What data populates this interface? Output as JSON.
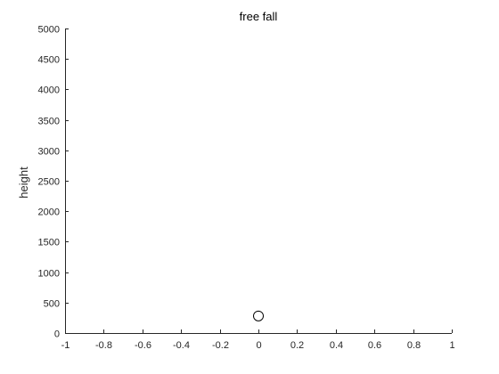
{
  "chart_data": {
    "type": "scatter",
    "title": "free fall",
    "xlabel": "",
    "ylabel": "height",
    "xlim": [
      -1,
      1
    ],
    "ylim": [
      0,
      5000
    ],
    "xticks": [
      -1,
      -0.8,
      -0.6,
      -0.4,
      -0.2,
      0,
      0.2,
      0.4,
      0.6,
      0.8,
      1
    ],
    "xtick_labels": [
      "-1",
      "-0.8",
      "-0.6",
      "-0.4",
      "-0.2",
      "0",
      "0.2",
      "0.4",
      "0.6",
      "0.8",
      "1"
    ],
    "yticks": [
      0,
      500,
      1000,
      1500,
      2000,
      2500,
      3000,
      3500,
      4000,
      4500,
      5000
    ],
    "ytick_labels": [
      "0",
      "500",
      "1000",
      "1500",
      "2000",
      "2500",
      "3000",
      "3500",
      "4000",
      "4500",
      "5000"
    ],
    "grid": false,
    "marker": "circle-open",
    "points": [
      {
        "x": 0,
        "y": 280
      }
    ],
    "colors": {
      "axis": "#262626",
      "marker": "#000000",
      "background": "#ffffff"
    }
  }
}
